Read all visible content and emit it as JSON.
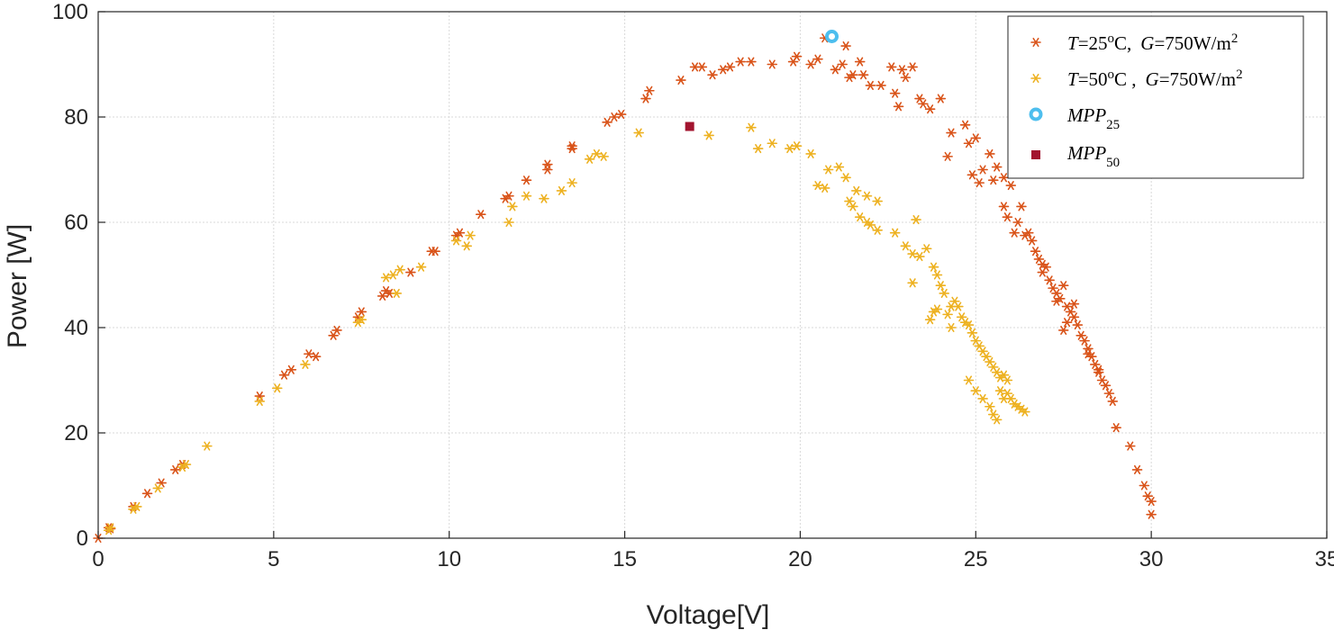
{
  "chart_data": {
    "type": "scatter",
    "xlabel": "Voltage[V]",
    "ylabel": "Power [W]",
    "xlim": [
      0,
      35
    ],
    "ylim": [
      0,
      100
    ],
    "xticks": [
      0,
      5,
      10,
      15,
      20,
      25,
      30,
      35
    ],
    "yticks": [
      0,
      20,
      40,
      60,
      80,
      100
    ],
    "grid": true,
    "legend_position": "top-right",
    "colors": {
      "s25": "#D95319",
      "s50": "#EDB120",
      "mpp25": "#4DBEEE",
      "mpp50": "#A2142F"
    },
    "legend": [
      {
        "id": "s25",
        "T_label": "T",
        "T_value": "=25",
        "T_unit_sup": "o",
        "T_unit": "C,",
        "G_label": "G",
        "G_value": "=750W/m",
        "G_sup": "2"
      },
      {
        "id": "s50",
        "T_label": "T",
        "T_value": "=50",
        "T_unit_sup": "o",
        "T_unit": "C ,",
        "G_label": "G",
        "G_value": "=750W/m",
        "G_sup": "2"
      },
      {
        "id": "mpp25",
        "base": "MPP",
        "sub": "25"
      },
      {
        "id": "mpp50",
        "base": "MPP",
        "sub": "50"
      }
    ],
    "series": [
      {
        "id": "s25",
        "marker": "asterisk",
        "points": [
          [
            0,
            0
          ],
          [
            0.3,
            2
          ],
          [
            0.35,
            1.8
          ],
          [
            1,
            6
          ],
          [
            1.4,
            8.5
          ],
          [
            1.8,
            10.5
          ],
          [
            2.2,
            13
          ],
          [
            2.4,
            14
          ],
          [
            4.6,
            27
          ],
          [
            5.3,
            31
          ],
          [
            5.5,
            32
          ],
          [
            6,
            35
          ],
          [
            6.2,
            34.5
          ],
          [
            6.7,
            38.5
          ],
          [
            6.8,
            39.5
          ],
          [
            7.4,
            42
          ],
          [
            7.5,
            43
          ],
          [
            8.1,
            46
          ],
          [
            8.2,
            47
          ],
          [
            8.3,
            46.5
          ],
          [
            8.9,
            50.5
          ],
          [
            9.5,
            54.5
          ],
          [
            9.6,
            54.5
          ],
          [
            10.2,
            57.5
          ],
          [
            10.3,
            58
          ],
          [
            10.9,
            61.5
          ],
          [
            11.6,
            64.5
          ],
          [
            11.7,
            65
          ],
          [
            12.2,
            68
          ],
          [
            12.8,
            70
          ],
          [
            12.8,
            71
          ],
          [
            13.5,
            74
          ],
          [
            13.5,
            74.5
          ],
          [
            14.5,
            79
          ],
          [
            14.7,
            80
          ],
          [
            14.9,
            80.5
          ],
          [
            15.6,
            83.5
          ],
          [
            15.7,
            85
          ],
          [
            16.6,
            87
          ],
          [
            17,
            89.5
          ],
          [
            17.2,
            89.5
          ],
          [
            17.5,
            88
          ],
          [
            17.8,
            89
          ],
          [
            18,
            89.5
          ],
          [
            18.3,
            90.5
          ],
          [
            18.6,
            90.5
          ],
          [
            19.2,
            90
          ],
          [
            19.8,
            90.5
          ],
          [
            19.9,
            91.5
          ],
          [
            20.3,
            90
          ],
          [
            20.5,
            91
          ],
          [
            20.7,
            95
          ],
          [
            21,
            89
          ],
          [
            21.2,
            90
          ],
          [
            21.3,
            93.5
          ],
          [
            21.4,
            87.5
          ],
          [
            21.5,
            88
          ],
          [
            21.7,
            90.5
          ],
          [
            21.8,
            88
          ],
          [
            22,
            86
          ],
          [
            22.3,
            86
          ],
          [
            22.6,
            89.5
          ],
          [
            22.7,
            84.5
          ],
          [
            22.8,
            82
          ],
          [
            22.9,
            89
          ],
          [
            23,
            87.5
          ],
          [
            23.2,
            89.5
          ],
          [
            23.4,
            83.5
          ],
          [
            23.5,
            82.5
          ],
          [
            23.7,
            81.5
          ],
          [
            24,
            83.5
          ],
          [
            24.2,
            72.5
          ],
          [
            24.7,
            78.5
          ],
          [
            24.8,
            75
          ],
          [
            24.9,
            69
          ],
          [
            25,
            76
          ],
          [
            25.1,
            67.5
          ],
          [
            25.2,
            70
          ],
          [
            25.4,
            73
          ],
          [
            25.5,
            68
          ],
          [
            25.6,
            70.5
          ],
          [
            25.8,
            68.5
          ],
          [
            26,
            67
          ],
          [
            25.8,
            63
          ],
          [
            25.9,
            61
          ],
          [
            26.1,
            58
          ],
          [
            26.2,
            60
          ],
          [
            26.3,
            63
          ],
          [
            26.4,
            57.5
          ],
          [
            26.5,
            58
          ],
          [
            26.6,
            56.5
          ],
          [
            26.7,
            54.5
          ],
          [
            26.8,
            53
          ],
          [
            26.9,
            50.5
          ],
          [
            27,
            51.5
          ],
          [
            27.1,
            49
          ],
          [
            27.2,
            47.5
          ],
          [
            27.3,
            46.5
          ],
          [
            27.4,
            45.5
          ],
          [
            27.5,
            48
          ],
          [
            27.6,
            44
          ],
          [
            27.7,
            43
          ],
          [
            27.8,
            42
          ],
          [
            27.9,
            40.5
          ],
          [
            28,
            38.5
          ],
          [
            28.1,
            37.5
          ],
          [
            28.2,
            36
          ],
          [
            28.3,
            34.5
          ],
          [
            28.4,
            33
          ],
          [
            28.5,
            31.5
          ],
          [
            28.6,
            30
          ],
          [
            28.7,
            29
          ],
          [
            28.8,
            27.5
          ],
          [
            28.9,
            26
          ],
          [
            29,
            21
          ],
          [
            29.4,
            17.5
          ],
          [
            29.6,
            13
          ],
          [
            29.8,
            10
          ],
          [
            29.9,
            8
          ],
          [
            30,
            7
          ],
          [
            30,
            4.5
          ],
          [
            27.5,
            39.5
          ],
          [
            28.5,
            32
          ],
          [
            27.3,
            45
          ],
          [
            27.6,
            41
          ],
          [
            28.2,
            35
          ],
          [
            26.9,
            52
          ],
          [
            27.8,
            44.5
          ],
          [
            24.3,
            77
          ]
        ]
      },
      {
        "id": "s50",
        "marker": "asterisk",
        "points": [
          [
            0.3,
            1.5
          ],
          [
            0.35,
            2
          ],
          [
            1,
            5.5
          ],
          [
            1.1,
            6
          ],
          [
            1.7,
            9.5
          ],
          [
            2.4,
            13.5
          ],
          [
            2.5,
            14
          ],
          [
            3.1,
            17.5
          ],
          [
            4.6,
            26
          ],
          [
            5.1,
            28.5
          ],
          [
            5.9,
            33
          ],
          [
            7.4,
            41
          ],
          [
            7.5,
            41.5
          ],
          [
            8.2,
            49.5
          ],
          [
            8.4,
            50
          ],
          [
            8.6,
            51
          ],
          [
            8.5,
            46.5
          ],
          [
            9.2,
            51.5
          ],
          [
            10.2,
            56.5
          ],
          [
            10.5,
            55.5
          ],
          [
            10.6,
            57.5
          ],
          [
            11.7,
            60
          ],
          [
            11.8,
            63
          ],
          [
            12.2,
            65
          ],
          [
            12.7,
            64.5
          ],
          [
            13.2,
            66
          ],
          [
            13.5,
            67.5
          ],
          [
            14,
            72
          ],
          [
            14.2,
            73
          ],
          [
            14.4,
            72.5
          ],
          [
            15.4,
            77
          ],
          [
            17.4,
            76.5
          ],
          [
            18.6,
            78
          ],
          [
            18.8,
            74
          ],
          [
            19.2,
            75
          ],
          [
            19.7,
            74
          ],
          [
            19.9,
            74.5
          ],
          [
            20.3,
            73
          ],
          [
            20.5,
            67
          ],
          [
            20.7,
            66.5
          ],
          [
            20.8,
            70
          ],
          [
            21.1,
            70.5
          ],
          [
            21.3,
            68.5
          ],
          [
            21.4,
            64
          ],
          [
            21.5,
            63
          ],
          [
            21.6,
            66
          ],
          [
            21.7,
            61
          ],
          [
            21.9,
            60
          ],
          [
            21.9,
            65
          ],
          [
            22,
            59.5
          ],
          [
            22.2,
            58.5
          ],
          [
            22.2,
            64
          ],
          [
            22.7,
            58
          ],
          [
            23,
            55.5
          ],
          [
            23.2,
            54
          ],
          [
            23.3,
            60.5
          ],
          [
            23.4,
            53.5
          ],
          [
            23.6,
            55
          ],
          [
            23.8,
            51.5
          ],
          [
            23.9,
            50
          ],
          [
            24,
            48
          ],
          [
            23.7,
            41.5
          ],
          [
            23.9,
            43.5
          ],
          [
            24.1,
            46.5
          ],
          [
            24.2,
            42.5
          ],
          [
            24.3,
            40
          ],
          [
            24.4,
            45
          ],
          [
            24.5,
            44
          ],
          [
            24.6,
            42
          ],
          [
            24.7,
            41
          ],
          [
            24.8,
            40.5
          ],
          [
            24.9,
            39
          ],
          [
            25,
            37.5
          ],
          [
            25.1,
            36.5
          ],
          [
            25.2,
            35.5
          ],
          [
            25.3,
            34.5
          ],
          [
            25.4,
            33.5
          ],
          [
            25.5,
            32.5
          ],
          [
            25.6,
            31.5
          ],
          [
            25.7,
            30.5
          ],
          [
            25.8,
            31
          ],
          [
            25.9,
            30
          ],
          [
            24.8,
            30
          ],
          [
            25,
            28
          ],
          [
            25.2,
            26.5
          ],
          [
            25.4,
            25
          ],
          [
            25.5,
            23.5
          ],
          [
            25.6,
            22.5
          ],
          [
            25.7,
            28
          ],
          [
            25.8,
            26.5
          ],
          [
            25.9,
            27.5
          ],
          [
            26,
            26.5
          ],
          [
            26.1,
            25.5
          ],
          [
            26.2,
            25
          ],
          [
            26.3,
            24.5
          ],
          [
            26.4,
            24
          ],
          [
            23.2,
            48.5
          ],
          [
            23.8,
            43
          ],
          [
            24.3,
            44
          ]
        ]
      },
      {
        "id": "mpp25",
        "marker": "circle",
        "points": [
          [
            20.9,
            95.3
          ]
        ]
      },
      {
        "id": "mpp50",
        "marker": "square",
        "points": [
          [
            16.85,
            78.2
          ]
        ]
      }
    ]
  }
}
